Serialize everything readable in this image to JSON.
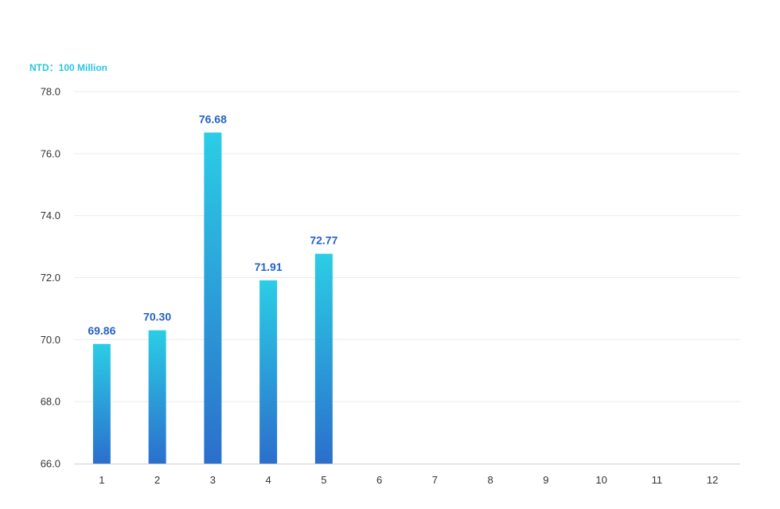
{
  "chart_data": {
    "type": "bar",
    "unit_label": "NTD：100 Million",
    "categories": [
      "1",
      "2",
      "3",
      "4",
      "5",
      "6",
      "7",
      "8",
      "9",
      "10",
      "11",
      "12"
    ],
    "values": [
      69.86,
      70.3,
      76.68,
      71.91,
      72.77,
      null,
      null,
      null,
      null,
      null,
      null,
      null
    ],
    "data_labels": [
      "69.86",
      "70.30",
      "76.68",
      "71.91",
      "72.77",
      "",
      "",
      "",
      "",
      "",
      "",
      ""
    ],
    "y_ticks": [
      "66.0",
      "68.0",
      "70.0",
      "72.0",
      "74.0",
      "76.0",
      "78.0"
    ],
    "ylim": [
      66,
      78
    ],
    "grid": true,
    "legend": "none",
    "colors": {
      "bar_top": "#2bcde6",
      "bar_bottom": "#2b6fcc",
      "data_label": "#2563c4",
      "unit_label": "#2bc6e0"
    }
  }
}
